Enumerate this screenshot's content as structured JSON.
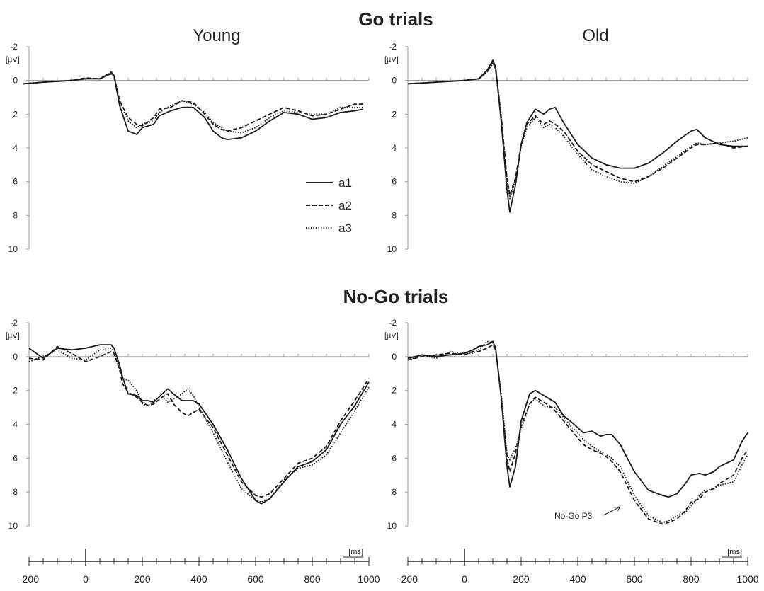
{
  "figure": {
    "go_title": "Go trials",
    "nogo_title": "No-Go trials",
    "young_title": "Young",
    "old_title": "Old",
    "y_unit": "[µV]",
    "x_unit": "[ms]"
  },
  "legend": [
    {
      "name": "a1",
      "style": "solid"
    },
    {
      "name": "a2",
      "style": "dashed"
    },
    {
      "name": "a3",
      "style": "dotted"
    }
  ],
  "annotation": "No-Go P3",
  "axes": {
    "y_ticks": [
      -2,
      0,
      2,
      4,
      6,
      8,
      10
    ],
    "y_range": [
      -2,
      10
    ],
    "y_inverted": true,
    "x_range": [
      -200,
      1000
    ],
    "x_ticks": [
      -200,
      0,
      200,
      400,
      600,
      800,
      1000
    ]
  },
  "chart_data": [
    {
      "type": "line",
      "title": "Go trials — Young",
      "x": [
        -220,
        -150,
        -100,
        -50,
        0,
        50,
        90,
        100,
        120,
        150,
        180,
        200,
        240,
        260,
        300,
        340,
        380,
        420,
        450,
        480,
        500,
        550,
        600,
        650,
        700,
        750,
        800,
        850,
        900,
        950,
        980
      ],
      "series": [
        {
          "name": "a1",
          "values": [
            0.2,
            0.1,
            0.05,
            0,
            -0.1,
            -0.1,
            -0.4,
            -0.3,
            1.5,
            3.0,
            3.2,
            2.8,
            2.6,
            2.1,
            1.8,
            1.6,
            1.6,
            2.2,
            3.0,
            3.4,
            3.5,
            3.4,
            3.0,
            2.4,
            1.9,
            2.0,
            2.3,
            2.2,
            1.9,
            1.8,
            1.7
          ]
        },
        {
          "name": "a2",
          "values": [
            0.2,
            0.1,
            0.05,
            0,
            -0.15,
            -0.1,
            -0.5,
            -0.3,
            1.2,
            2.2,
            2.6,
            2.7,
            2.2,
            1.7,
            1.6,
            1.2,
            1.3,
            2.0,
            2.6,
            2.9,
            3.0,
            2.8,
            2.4,
            2.0,
            1.6,
            1.8,
            2.1,
            2.0,
            1.7,
            1.4,
            1.4
          ]
        },
        {
          "name": "a3",
          "values": [
            0.2,
            0.1,
            0.05,
            0,
            -0.1,
            -0.1,
            -0.45,
            -0.3,
            1.3,
            2.4,
            2.8,
            2.6,
            2.4,
            1.9,
            1.5,
            1.2,
            1.4,
            1.9,
            2.5,
            2.8,
            3.0,
            3.1,
            2.8,
            2.2,
            1.8,
            1.9,
            2.0,
            2.0,
            1.6,
            1.6,
            1.6
          ]
        }
      ],
      "ylim": [
        -2,
        10
      ],
      "xlim": [
        -200,
        1000
      ],
      "grid": false,
      "legend": "right"
    },
    {
      "type": "line",
      "title": "Go trials — Old",
      "x": [
        -200,
        -100,
        0,
        50,
        80,
        100,
        110,
        130,
        150,
        160,
        180,
        200,
        220,
        250,
        280,
        300,
        320,
        350,
        400,
        450,
        500,
        550,
        600,
        650,
        700,
        750,
        800,
        820,
        850,
        900,
        950,
        1000
      ],
      "series": [
        {
          "name": "a1",
          "values": [
            0.2,
            0.1,
            0,
            -0.1,
            -0.6,
            -1.2,
            -0.8,
            2.5,
            6.5,
            7.8,
            6.2,
            3.8,
            2.5,
            1.7,
            2.0,
            1.7,
            1.6,
            2.5,
            3.8,
            4.6,
            5.0,
            5.2,
            5.2,
            4.9,
            4.3,
            3.6,
            3.0,
            2.9,
            3.4,
            3.8,
            3.9,
            3.9
          ]
        },
        {
          "name": "a2",
          "values": [
            0.2,
            0.1,
            0,
            -0.1,
            -0.5,
            -1.1,
            -0.6,
            2.2,
            5.8,
            6.8,
            5.8,
            3.8,
            2.6,
            2.1,
            2.6,
            2.4,
            2.6,
            3.0,
            4.2,
            5.0,
            5.4,
            5.8,
            6.0,
            5.7,
            5.2,
            4.6,
            4.0,
            3.8,
            3.8,
            3.7,
            4.0,
            3.9
          ]
        },
        {
          "name": "a3",
          "values": [
            0.2,
            0.1,
            0,
            -0.1,
            -0.5,
            -1.0,
            -0.7,
            2.1,
            5.9,
            7.0,
            5.9,
            3.9,
            2.8,
            2.2,
            2.8,
            2.6,
            2.8,
            3.3,
            4.4,
            5.3,
            5.7,
            6.0,
            6.1,
            5.7,
            5.1,
            4.5,
            3.9,
            3.7,
            3.8,
            3.7,
            3.6,
            3.4
          ]
        }
      ],
      "ylim": [
        -2,
        10
      ],
      "xlim": [
        -200,
        1000
      ],
      "grid": false,
      "legend": ""
    },
    {
      "type": "line",
      "title": "No-Go trials — Young",
      "x": [
        -200,
        -150,
        -100,
        -50,
        0,
        50,
        90,
        100,
        120,
        130,
        150,
        180,
        200,
        220,
        240,
        270,
        290,
        310,
        340,
        360,
        380,
        400,
        450,
        500,
        550,
        600,
        620,
        650,
        700,
        750,
        800,
        850,
        900,
        950,
        1000
      ],
      "series": [
        {
          "name": "a1",
          "values": [
            -0.5,
            0.1,
            -0.5,
            -0.4,
            -0.5,
            -0.7,
            -0.7,
            -0.5,
            0.5,
            1.2,
            2.2,
            2.3,
            2.6,
            2.6,
            2.7,
            2.2,
            1.9,
            2.2,
            2.6,
            2.6,
            2.6,
            2.8,
            4.0,
            5.5,
            7.2,
            8.5,
            8.7,
            8.4,
            7.4,
            6.5,
            6.2,
            5.5,
            4.0,
            2.9,
            1.5
          ]
        },
        {
          "name": "a2",
          "values": [
            0.1,
            0.2,
            -0.6,
            -0.2,
            0.3,
            0.0,
            -0.3,
            -0.2,
            0.8,
            1.6,
            2.1,
            2.4,
            2.7,
            2.9,
            2.8,
            2.4,
            2.2,
            2.8,
            3.3,
            3.5,
            3.3,
            3.1,
            4.2,
            5.8,
            7.4,
            8.2,
            8.3,
            8.1,
            7.2,
            6.3,
            6.0,
            5.3,
            3.8,
            2.6,
            1.3
          ]
        },
        {
          "name": "a3",
          "values": [
            0.3,
            0.0,
            -0.4,
            0.1,
            0.2,
            -0.4,
            -0.5,
            -0.2,
            0.7,
            1.3,
            1.4,
            2.0,
            2.8,
            2.9,
            2.6,
            2.3,
            2.7,
            2.5,
            2.2,
            1.9,
            2.3,
            3.0,
            4.5,
            6.2,
            7.8,
            8.5,
            8.6,
            8.4,
            7.3,
            6.6,
            6.4,
            5.8,
            4.5,
            3.2,
            1.8
          ]
        }
      ],
      "ylim": [
        -2,
        10
      ],
      "xlim": [
        -200,
        1000
      ],
      "grid": false,
      "legend": ""
    },
    {
      "type": "line",
      "title": "No-Go trials — Old",
      "x": [
        -200,
        -150,
        -100,
        -50,
        0,
        30,
        50,
        80,
        100,
        110,
        130,
        150,
        160,
        180,
        200,
        230,
        250,
        280,
        300,
        320,
        350,
        380,
        400,
        420,
        450,
        480,
        500,
        520,
        550,
        600,
        650,
        700,
        720,
        750,
        780,
        800,
        830,
        850,
        880,
        900,
        950,
        980,
        1000
      ],
      "series": [
        {
          "name": "a1",
          "values": [
            0.1,
            -0.1,
            0,
            -0.1,
            -0.2,
            -0.4,
            -0.6,
            -0.7,
            -0.9,
            -0.5,
            2.5,
            6.5,
            7.7,
            6.5,
            3.8,
            2.2,
            2.0,
            2.3,
            2.5,
            2.7,
            3.5,
            3.9,
            4.2,
            4.5,
            4.4,
            4.7,
            4.6,
            4.6,
            5.2,
            6.8,
            7.9,
            8.2,
            8.3,
            8.1,
            7.5,
            7.0,
            6.9,
            7.0,
            6.8,
            6.5,
            6.1,
            5.0,
            4.5
          ]
        },
        {
          "name": "a2",
          "values": [
            0.2,
            0.0,
            -0.1,
            -0.2,
            -0.1,
            -0.3,
            -0.3,
            -0.5,
            -0.7,
            -0.4,
            2.4,
            6.0,
            6.8,
            5.7,
            4.1,
            2.8,
            2.4,
            2.7,
            2.9,
            3.2,
            3.8,
            4.4,
            4.8,
            5.2,
            5.5,
            5.7,
            5.9,
            6.2,
            6.8,
            8.5,
            9.6,
            9.9,
            9.8,
            9.6,
            9.1,
            8.6,
            8.4,
            8.0,
            7.8,
            7.5,
            7.0,
            6.0,
            5.5
          ]
        },
        {
          "name": "a3",
          "values": [
            0.2,
            -0.1,
            0.1,
            -0.3,
            -0.2,
            -0.2,
            -0.4,
            -0.9,
            -0.8,
            -0.4,
            2.2,
            5.8,
            6.1,
            5.4,
            4.3,
            2.8,
            2.5,
            2.9,
            3.0,
            3.0,
            3.6,
            4.2,
            4.5,
            4.9,
            5.3,
            5.6,
            5.8,
            6.0,
            6.5,
            8.2,
            9.4,
            9.8,
            9.7,
            9.4,
            9.2,
            8.8,
            8.2,
            7.9,
            7.8,
            7.6,
            7.4,
            6.4,
            5.8
          ]
        }
      ],
      "ylim": [
        -2,
        10
      ],
      "xlim": [
        -200,
        1000
      ],
      "grid": false,
      "legend": ""
    }
  ]
}
